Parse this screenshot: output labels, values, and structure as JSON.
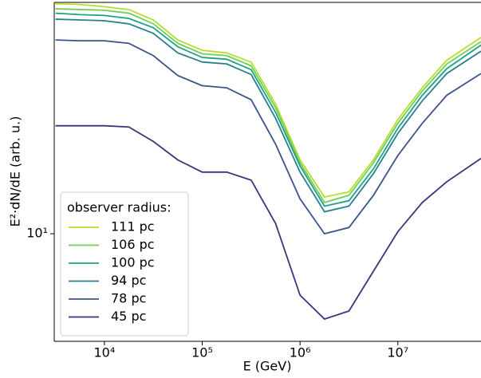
{
  "chart_data": {
    "type": "line",
    "xlabel": "E (GeV)",
    "ylabel": "E²·dN/dE (arb. u.)",
    "xscale": "log",
    "yscale": "log",
    "x": [
      3162,
      5623,
      10000,
      17783,
      31623,
      56234,
      100000,
      177828,
      316228,
      562341,
      1000000,
      1778279,
      3162278,
      5623413,
      10000000,
      17782794,
      31622777,
      70794578
    ],
    "xlim": [
      3070,
      70794578
    ],
    "ylim": [
      6,
      30
    ],
    "xticks": [
      {
        "value": 10000,
        "label": "10⁴"
      },
      {
        "value": 100000,
        "label": "10⁵"
      },
      {
        "value": 1000000,
        "label": "10⁶"
      },
      {
        "value": 10000000,
        "label": "10⁷"
      }
    ],
    "yticks": [
      {
        "value": 10,
        "label": "10¹"
      }
    ],
    "legend_title": "observer radius:",
    "legend_position": "lower left",
    "series": [
      {
        "name": "111 pc",
        "color": "#b5de2b",
        "values": [
          29.8,
          29.7,
          29.4,
          29.0,
          27.6,
          25.1,
          23.9,
          23.6,
          22.6,
          18.5,
          14.2,
          11.9,
          12.2,
          14.2,
          17.2,
          20.0,
          22.8,
          25.4
        ]
      },
      {
        "name": "106 pc",
        "color": "#6ece58",
        "values": [
          29.1,
          29.0,
          28.9,
          28.5,
          27.1,
          24.7,
          23.5,
          23.3,
          22.2,
          18.2,
          14.0,
          11.6,
          12.0,
          14.0,
          16.9,
          19.7,
          22.4,
          24.9
        ]
      },
      {
        "name": "100 pc",
        "color": "#1fa187",
        "values": [
          28.5,
          28.3,
          28.2,
          27.8,
          26.6,
          24.3,
          23.1,
          22.9,
          21.8,
          17.8,
          13.8,
          11.4,
          11.7,
          13.6,
          16.5,
          19.3,
          21.9,
          24.5
        ]
      },
      {
        "name": "94 pc",
        "color": "#277f8e",
        "values": [
          27.7,
          27.6,
          27.5,
          27.1,
          25.9,
          23.6,
          22.6,
          22.4,
          21.3,
          17.3,
          13.4,
          11.1,
          11.4,
          13.3,
          16.1,
          18.8,
          21.4,
          23.8
        ]
      },
      {
        "name": "78 pc",
        "color": "#3b528b",
        "values": [
          25.1,
          25.0,
          25.0,
          24.7,
          23.3,
          21.2,
          20.2,
          20.0,
          18.9,
          15.3,
          11.8,
          10.0,
          10.3,
          12.0,
          14.5,
          16.9,
          19.3,
          21.4
        ]
      },
      {
        "name": "45 pc",
        "color": "#472d7b",
        "values": [
          16.7,
          16.7,
          16.7,
          16.6,
          15.5,
          14.2,
          13.4,
          13.4,
          12.9,
          10.5,
          7.47,
          6.67,
          6.93,
          8.37,
          10.1,
          11.6,
          12.8,
          14.3
        ]
      }
    ]
  }
}
